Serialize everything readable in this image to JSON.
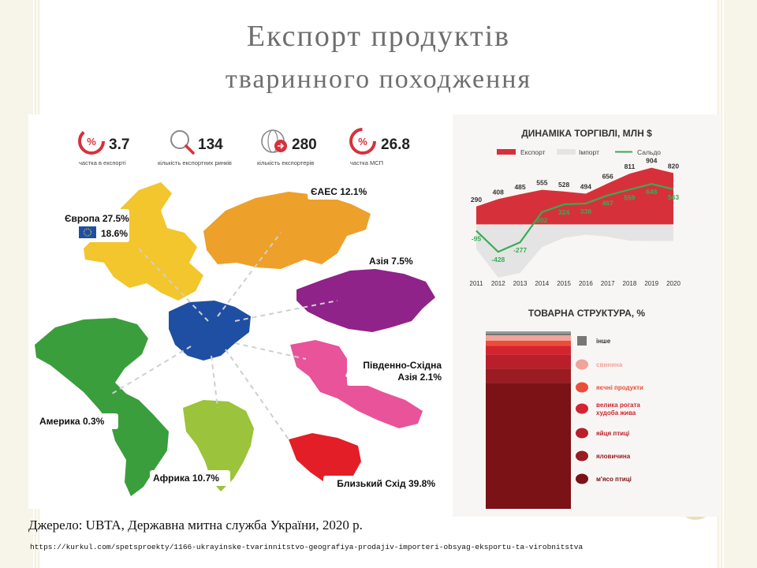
{
  "slide": {
    "title_line1": "Експорт продуктів",
    "title_line2": "тваринного походження",
    "source": "Джерело: UBTA, Державна митна служба України, 2020 р.",
    "url": "https://kurkul.com/spetsproekty/1166-ukrayinske-tvarinnitstvo-geografiya-prodajiv-importeri-obsyag-eksportu-ta-virobnitstva"
  },
  "kpis": [
    {
      "value": "3.7",
      "label": "частка в експорті",
      "icon": "export-share-icon"
    },
    {
      "value": "134",
      "label": "кількість експортних ринків",
      "icon": "markets-search-icon"
    },
    {
      "value": "280",
      "label": "кількість експортерів",
      "icon": "exporters-globe-icon"
    },
    {
      "value": "26.8",
      "label": "частка МСП",
      "icon": "sme-share-icon"
    }
  ],
  "regions": {
    "europe": "Європа 27.5%",
    "eu": "18.6%",
    "eaeu": "ЄАЕС 12.1%",
    "asia": "Азія 7.5%",
    "sea_line1": "Південно-Східна",
    "sea_line2": "Азія 2.1%",
    "america": "Америка 0.3%",
    "africa": "Африка 10.7%",
    "middle_east": "Близький Схід 39.8%"
  },
  "colors": {
    "europe": "#f2c62c",
    "eaeu": "#eda02a",
    "asia": "#8f2389",
    "sea": "#e8539a",
    "america": "#3a9e3c",
    "africa": "#9bc33b",
    "middle_east": "#e31e27",
    "ukraine": "#1f4fa3",
    "export": "#d6313a",
    "saldo": "#3aab55",
    "import": "#e4e4e4"
  },
  "chart_data": [
    {
      "type": "line",
      "title": "ДИНАМІКА ТОРГІВЛІ, МЛН $",
      "x": [
        "2011",
        "2012",
        "2013",
        "2014",
        "2015",
        "2016",
        "2017",
        "2018",
        "2019",
        "2020"
      ],
      "series": [
        {
          "name": "Експорт",
          "values": [
            290,
            408,
            485,
            555,
            528,
            494,
            656,
            811,
            904,
            820
          ]
        },
        {
          "name": "Імпорт",
          "values": [
            385,
            836,
            762,
            353,
            204,
            156,
            189,
            252,
            256,
            257
          ]
        },
        {
          "name": "Сальдо",
          "values": [
            -95,
            -428,
            -277,
            202,
            324,
            338,
            467,
            559,
            648,
            563
          ]
        }
      ]
    },
    {
      "type": "bar",
      "title": "ТОВАРНА СТРУКТУРА, %",
      "categories": [
        "інше",
        "свинина",
        "яєчні продукти",
        "велика рогата худоба жива",
        "яйця птиці",
        "яловичина",
        "м'ясо птиці"
      ],
      "colors": [
        "#777777",
        "#f2a39a",
        "#ec4d3b",
        "#d32430",
        "#b91f2a",
        "#9b1b22",
        "#7a1216"
      ],
      "values": [
        1,
        3,
        3,
        5,
        8,
        8,
        72
      ]
    }
  ]
}
